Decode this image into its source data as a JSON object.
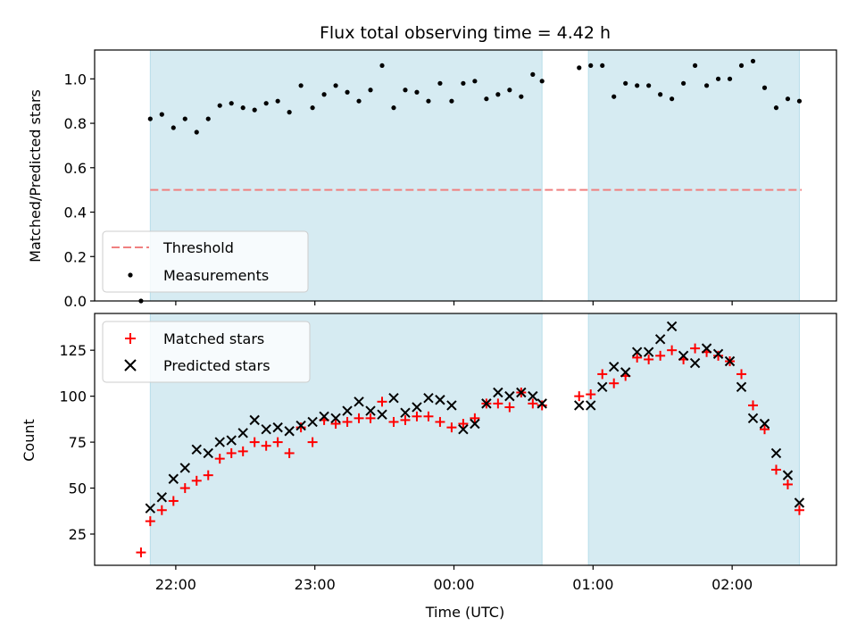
{
  "chart_data": [
    {
      "type": "scatter",
      "title": "Flux total observing time = 4.42 h",
      "ylabel": "Matched/Predicted stars",
      "xlabel": "",
      "ylim": [
        0,
        1.13
      ],
      "yticks": [
        "0.0",
        "0.2",
        "0.4",
        "0.6",
        "0.8",
        "1.0"
      ],
      "ytick_values": [
        0,
        0.2,
        0.4,
        0.6,
        0.8,
        1.0
      ],
      "shade_color": "#add8e6",
      "legend": {
        "placement": "lower-left",
        "entries": [
          "Threshold",
          "Measurements"
        ]
      },
      "threshold": {
        "name": "Threshold",
        "value": 0.5,
        "color": "#f08080",
        "x_start": "21:49",
        "x_end": "02:30"
      },
      "measurements": {
        "name": "Measurements",
        "color": "#000000",
        "x": [
          "21:45",
          "21:49",
          "21:54",
          "21:59",
          "22:04",
          "22:09",
          "22:14",
          "22:19",
          "22:24",
          "22:29",
          "22:34",
          "22:39",
          "22:44",
          "22:49",
          "22:54",
          "22:59",
          "23:04",
          "23:09",
          "23:14",
          "23:19",
          "23:24",
          "23:29",
          "23:34",
          "23:39",
          "23:44",
          "23:49",
          "23:54",
          "23:59",
          "00:04",
          "00:09",
          "00:14",
          "00:19",
          "00:24",
          "00:29",
          "00:34",
          "00:54",
          "00:59",
          "01:04",
          "01:09",
          "01:14",
          "01:19",
          "01:24",
          "01:29",
          "01:34",
          "01:39",
          "01:44",
          "01:49",
          "01:54",
          "01:59",
          "02:04",
          "02:09",
          "02:14",
          "02:19",
          "02:24",
          "02:29"
        ],
        "y": [
          0.0,
          0.82,
          0.84,
          0.78,
          0.82,
          0.76,
          0.82,
          0.88,
          0.89,
          0.87,
          0.86,
          0.89,
          0.9,
          0.85,
          0.97,
          0.87,
          0.93,
          0.97,
          0.94,
          0.9,
          0.95,
          1.06,
          0.87,
          0.95,
          0.94,
          0.9,
          0.98,
          0.9,
          0.98,
          0.99,
          0.91,
          0.93,
          0.95,
          0.92,
          1.02,
          1.05,
          1.06,
          1.06,
          0.92,
          0.98,
          0.97,
          0.97,
          0.93,
          0.91,
          0.98,
          1.06,
          0.97,
          1.0,
          1.0,
          1.06,
          1.08,
          0.96,
          0.87,
          0.91,
          0.9
        ]
      },
      "extra_points": [
        {
          "x": "00:38",
          "y": 0.99
        }
      ]
    },
    {
      "type": "scatter",
      "title": "",
      "ylabel": "Count",
      "xlabel": "Time (UTC)",
      "ylim": [
        8,
        145
      ],
      "yticks": [
        "25",
        "50",
        "75",
        "100",
        "125"
      ],
      "ytick_values": [
        25,
        50,
        75,
        100,
        125
      ],
      "xticks": [
        "22:00",
        "23:00",
        "00:00",
        "01:00",
        "02:00"
      ],
      "shade_color": "#add8e6",
      "legend": {
        "placement": "upper-left",
        "entries": [
          "Matched stars",
          "Predicted stars"
        ]
      },
      "series": [
        {
          "name": "Matched stars",
          "marker": "+",
          "color": "#ff0000",
          "x": [
            "21:45",
            "21:49",
            "21:54",
            "21:59",
            "22:04",
            "22:09",
            "22:14",
            "22:19",
            "22:24",
            "22:29",
            "22:34",
            "22:39",
            "22:44",
            "22:49",
            "22:54",
            "22:59",
            "23:04",
            "23:09",
            "23:14",
            "23:19",
            "23:24",
            "23:29",
            "23:34",
            "23:39",
            "23:44",
            "23:49",
            "23:54",
            "23:59",
            "00:04",
            "00:09",
            "00:14",
            "00:19",
            "00:24",
            "00:29",
            "00:34",
            "00:38",
            "00:54",
            "00:59",
            "01:04",
            "01:09",
            "01:14",
            "01:19",
            "01:24",
            "01:29",
            "01:34",
            "01:39",
            "01:44",
            "01:49",
            "01:54",
            "01:59",
            "02:04",
            "02:09",
            "02:14",
            "02:19",
            "02:24",
            "02:29"
          ],
          "y": [
            15,
            32,
            38,
            43,
            50,
            54,
            57,
            66,
            69,
            70,
            75,
            73,
            75,
            69,
            83,
            75,
            87,
            85,
            86,
            88,
            88,
            97,
            86,
            87,
            89,
            89,
            86,
            83,
            85,
            88,
            96,
            96,
            94,
            102,
            96,
            95,
            100,
            101,
            112,
            107,
            111,
            121,
            120,
            122,
            125,
            120,
            126,
            124,
            122,
            119,
            112,
            95,
            82,
            60,
            52,
            38
          ]
        },
        {
          "name": "Predicted stars",
          "marker": "x",
          "color": "#000000",
          "x": [
            "21:49",
            "21:54",
            "21:59",
            "22:04",
            "22:09",
            "22:14",
            "22:19",
            "22:24",
            "22:29",
            "22:34",
            "22:39",
            "22:44",
            "22:49",
            "22:54",
            "22:59",
            "23:04",
            "23:09",
            "23:14",
            "23:19",
            "23:24",
            "23:29",
            "23:34",
            "23:39",
            "23:44",
            "23:49",
            "23:54",
            "23:59",
            "00:04",
            "00:09",
            "00:14",
            "00:19",
            "00:24",
            "00:29",
            "00:34",
            "00:38",
            "00:54",
            "00:59",
            "01:04",
            "01:09",
            "01:14",
            "01:19",
            "01:24",
            "01:29",
            "01:34",
            "01:39",
            "01:44",
            "01:49",
            "01:54",
            "01:59",
            "02:04",
            "02:09",
            "02:14",
            "02:19",
            "02:24",
            "02:29"
          ],
          "y": [
            39,
            45,
            55,
            61,
            71,
            69,
            75,
            76,
            80,
            87,
            82,
            83,
            81,
            84,
            86,
            89,
            88,
            92,
            97,
            92,
            90,
            99,
            91,
            94,
            99,
            98,
            95,
            82,
            85,
            96,
            102,
            100,
            102,
            100,
            96,
            95,
            95,
            105,
            116,
            113,
            124,
            124,
            131,
            138,
            122,
            118,
            126,
            123,
            119,
            105,
            88,
            85,
            69,
            57,
            42
          ]
        }
      ]
    }
  ],
  "shared": {
    "x_range": [
      "21:25",
      "02:45"
    ],
    "shaded_intervals": [
      [
        "21:49",
        "00:38"
      ],
      [
        "00:58",
        "02:29"
      ]
    ]
  }
}
